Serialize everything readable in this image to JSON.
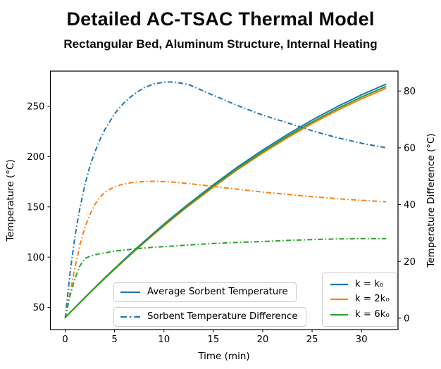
{
  "chart_data": {
    "type": "line",
    "title": "Detailed AC-TSAC Thermal Model",
    "subtitle": "Rectangular Bed, Aluminum Structure, Internal Heating",
    "xlabel": "Time (min)",
    "ylabel_left": "Temperature (°C)",
    "ylabel_right": "Temperature Difference (°C)",
    "xlim": [
      -1.5,
      33.7
    ],
    "ylim_left": [
      28,
      285
    ],
    "ylim_right": [
      -4,
      87
    ],
    "xticks": [
      0,
      5,
      10,
      15,
      20,
      25,
      30
    ],
    "yticks_left": [
      50,
      100,
      150,
      200,
      250
    ],
    "yticks_right": [
      0,
      20,
      40,
      60,
      80
    ],
    "grid": false,
    "x": [
      0,
      0.5,
      1,
      1.5,
      2,
      2.5,
      3,
      3.5,
      4,
      5,
      6,
      7,
      8,
      9,
      10,
      11,
      12.5,
      15,
      17.5,
      20,
      22.5,
      25,
      27.5,
      30,
      32.5
    ],
    "series": [
      {
        "id": "avg-temp-k0",
        "name": "Average Sorbent Temperature (k = k₀)",
        "axis": "left",
        "style": "solid",
        "color": "#1f77b4",
        "values": [
          40,
          45,
          50,
          55,
          60,
          65,
          69.8,
          74.6,
          79.4,
          88.7,
          97.9,
          106.9,
          115.7,
          124.3,
          132.8,
          141,
          153,
          172,
          190,
          206.5,
          222,
          236.3,
          249.5,
          261.4,
          272.1
        ]
      },
      {
        "id": "avg-temp-2k0",
        "name": "Average Sorbent Temperature (k = 2k₀)",
        "axis": "left",
        "style": "solid",
        "color": "#ff7f0e",
        "values": [
          40,
          44.9,
          49.8,
          54.7,
          59.6,
          64.6,
          69.3,
          74,
          78.7,
          87.8,
          96.9,
          105.7,
          114.3,
          122.8,
          131.1,
          139.2,
          151,
          169.6,
          187.3,
          203.5,
          218.7,
          232.8,
          245.7,
          257.4,
          267.9
        ]
      },
      {
        "id": "avg-temp-6k0",
        "name": "Average Sorbent Temperature (k = 6k₀)",
        "axis": "left",
        "style": "solid",
        "color": "#2ca02c",
        "values": [
          40,
          45,
          49.9,
          54.9,
          59.8,
          64.8,
          69.5,
          74.3,
          79,
          88.2,
          97.3,
          106.2,
          114.9,
          123.4,
          131.9,
          140,
          151.9,
          170.7,
          188.5,
          204.8,
          220.2,
          234.3,
          247.4,
          259.2,
          269.8
        ]
      },
      {
        "id": "temp-diff-k0",
        "name": "Sorbent Temperature Difference (k = k₀)",
        "axis": "right",
        "style": "dashdot",
        "color": "#1f77b4",
        "values": [
          0,
          16,
          29,
          39,
          47,
          53.5,
          58.5,
          62.7,
          66.3,
          72,
          76,
          79,
          81.2,
          82.5,
          83.1,
          83.2,
          82.3,
          78.5,
          74.8,
          71.5,
          68.8,
          66,
          63.6,
          61.6,
          60
        ]
      },
      {
        "id": "temp-diff-2k0",
        "name": "Sorbent Temperature Difference (k = 2k₀)",
        "axis": "right",
        "style": "dashdot",
        "color": "#ff7f0e",
        "values": [
          0,
          9,
          18,
          26,
          32,
          36.5,
          40,
          42.5,
          44.3,
          46.3,
          47.3,
          47.9,
          48.1,
          48.2,
          48.1,
          47.9,
          47.4,
          46.4,
          45.4,
          44.4,
          43.6,
          42.8,
          42.1,
          41.5,
          41
        ]
      },
      {
        "id": "temp-diff-6k0",
        "name": "Sorbent Temperature Difference (k = 6k₀)",
        "axis": "right",
        "style": "dashdot",
        "color": "#2ca02c",
        "values": [
          0,
          8,
          14,
          18.5,
          21,
          21.8,
          22.3,
          22.7,
          23,
          23.6,
          24,
          24.4,
          24.7,
          25,
          25.2,
          25.4,
          25.8,
          26.3,
          26.7,
          27,
          27.4,
          27.7,
          27.9,
          28,
          28
        ]
      }
    ],
    "legends": {
      "line_style": [
        {
          "label": "Average Sorbent Temperature",
          "style": "solid",
          "color": "#1f77b4"
        },
        {
          "label": "Sorbent Temperature Difference",
          "style": "dashdot",
          "color": "#1f77b4"
        }
      ],
      "k_values": [
        {
          "label": "k = k₀",
          "style": "solid",
          "color": "#1f77b4"
        },
        {
          "label": "k = 2k₀",
          "style": "solid",
          "color": "#ff7f0e"
        },
        {
          "label": "k = 6k₀",
          "style": "solid",
          "color": "#2ca02c"
        }
      ]
    }
  },
  "colors": {
    "spine": "#000000",
    "legend_border": "#cccccc",
    "text": "#000000"
  }
}
